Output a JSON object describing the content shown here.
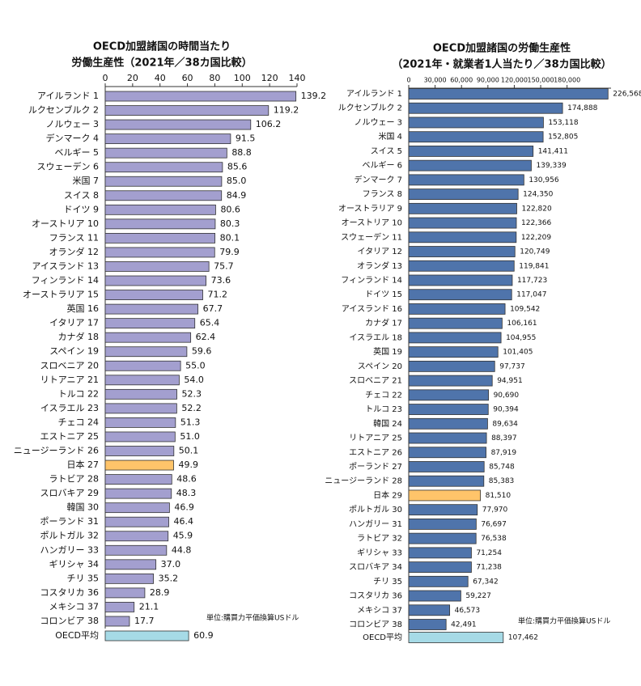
{
  "chart_data": [
    {
      "type": "bar",
      "orientation": "horizontal",
      "title": "OECD加盟諸国の時間当たり",
      "subtitle": "労働生産性（2021年／38カ国比較）",
      "categories": [
        "アイルランド 1",
        "ルクセンブルク 2",
        "ノルウェー 3",
        "デンマーク 4",
        "ベルギー 5",
        "スウェーデン 6",
        "米国 7",
        "スイス 8",
        "ドイツ 9",
        "オーストリア 10",
        "フランス 11",
        "オランダ 12",
        "アイスランド 13",
        "フィンランド 14",
        "オーストラリア 15",
        "英国 16",
        "イタリア 17",
        "カナダ 18",
        "スペイン 19",
        "スロベニア 20",
        "リトアニア 21",
        "トルコ 22",
        "イスラエル 23",
        "チェコ 24",
        "エストニア 25",
        "ニュージーランド 26",
        "日本 27",
        "ラトビア 28",
        "スロバキア 29",
        "韓国 30",
        "ポーランド 31",
        "ポルトガル 32",
        "ハンガリー 33",
        "ギリシャ 34",
        "チリ 35",
        "コスタリカ 36",
        "メキシコ 37",
        "コロンビア 38"
      ],
      "values": [
        139.2,
        119.2,
        106.2,
        91.5,
        88.8,
        85.6,
        85.0,
        84.9,
        80.6,
        80.3,
        80.1,
        79.9,
        75.7,
        73.6,
        71.2,
        67.7,
        65.4,
        62.4,
        59.6,
        55.0,
        54.0,
        52.3,
        52.2,
        51.3,
        51.0,
        50.1,
        49.9,
        48.6,
        48.3,
        46.9,
        46.4,
        45.9,
        44.8,
        37.0,
        35.2,
        28.9,
        21.1,
        17.7
      ],
      "value_labels": [
        "139.2",
        "119.2",
        "106.2",
        "91.5",
        "88.8",
        "85.6",
        "85.0",
        "84.9",
        "80.6",
        "80.3",
        "80.1",
        "79.9",
        "75.7",
        "73.6",
        "71.2",
        "67.7",
        "65.4",
        "62.4",
        "59.6",
        "55.0",
        "54.0",
        "52.3",
        "52.2",
        "51.3",
        "51.0",
        "50.1",
        "49.9",
        "48.6",
        "48.3",
        "46.9",
        "46.4",
        "45.9",
        "44.8",
        "37.0",
        "35.2",
        "28.9",
        "21.1",
        "17.7"
      ],
      "color": "#a39fcf",
      "highlight": {
        "index": 26,
        "color": "#ffc46a"
      },
      "average": {
        "label": "OECD平均",
        "value": 60.9,
        "value_label": "60.9",
        "color": "#a6dae6"
      },
      "xlim": [
        0,
        140
      ],
      "xticks": [
        0,
        20,
        40,
        60,
        80,
        100,
        120,
        140
      ],
      "note": "単位:購買力平価換算USドル"
    },
    {
      "type": "bar",
      "orientation": "horizontal",
      "title": "OECD加盟諸国の労働生産性",
      "subtitle": "（2021年・就業者1人当たり／38カ国比較）",
      "categories": [
        "アイルランド 1",
        "ルクセンブルク 2",
        "ノルウェー 3",
        "米国 4",
        "スイス 5",
        "ベルギー 6",
        "デンマーク 7",
        "フランス 8",
        "オーストラリア 9",
        "オーストリア 10",
        "スウェーデン 11",
        "イタリア 12",
        "オランダ 13",
        "フィンランド 14",
        "ドイツ 15",
        "アイスランド 16",
        "カナダ 17",
        "イスラエル 18",
        "英国 19",
        "スペイン 20",
        "スロベニア 21",
        "チェコ 22",
        "トルコ 23",
        "韓国 24",
        "リトアニア 25",
        "エストニア 26",
        "ポーランド 27",
        "ニュージーランド 28",
        "日本 29",
        "ポルトガル 30",
        "ハンガリー 31",
        "ラトビア 32",
        "ギリシャ 33",
        "スロバキア 34",
        "チリ 35",
        "コスタリカ 36",
        "メキシコ 37",
        "コロンビア 38"
      ],
      "values": [
        226568,
        174888,
        153118,
        152805,
        141411,
        139339,
        130956,
        124350,
        122820,
        122366,
        122209,
        120749,
        119841,
        117723,
        117047,
        109542,
        106161,
        104955,
        101405,
        97737,
        94951,
        90690,
        90394,
        89634,
        88397,
        87919,
        85748,
        85383,
        81510,
        77970,
        76697,
        76538,
        71254,
        71238,
        67342,
        59227,
        46573,
        42491
      ],
      "value_labels": [
        "226,568",
        "174,888",
        "153,118",
        "152,805",
        "141,411",
        "139,339",
        "130,956",
        "124,350",
        "122,820",
        "122,366",
        "122,209",
        "120,749",
        "119,841",
        "117,723",
        "117,047",
        "109,542",
        "106,161",
        "104,955",
        "101,405",
        "97,737",
        "94,951",
        "90,690",
        "90,394",
        "89,634",
        "88,397",
        "87,919",
        "85,748",
        "85,383",
        "81,510",
        "77,970",
        "76,697",
        "76,538",
        "71,254",
        "71,238",
        "67,342",
        "59,227",
        "46,573",
        "42,491"
      ],
      "color": "#4f74ab",
      "highlight": {
        "index": 28,
        "color": "#ffc46a"
      },
      "average": {
        "label": "OECD平均",
        "value": 107462,
        "value_label": "107,462",
        "color": "#a6dae6"
      },
      "xlim": [
        0,
        230000
      ],
      "xticks": [
        0,
        {
          "value": 30000,
          "label": "30,000"
        },
        {
          "value": 60000,
          "label": "60,000"
        },
        {
          "value": 90000,
          "label": "90,000"
        },
        {
          "value": 120000,
          "label": "120,000"
        },
        {
          "value": 150000,
          "label": "150,000"
        },
        {
          "value": 180000,
          "label": "180,000"
        }
      ],
      "note": "単位:購買力平価換算USドル"
    }
  ]
}
